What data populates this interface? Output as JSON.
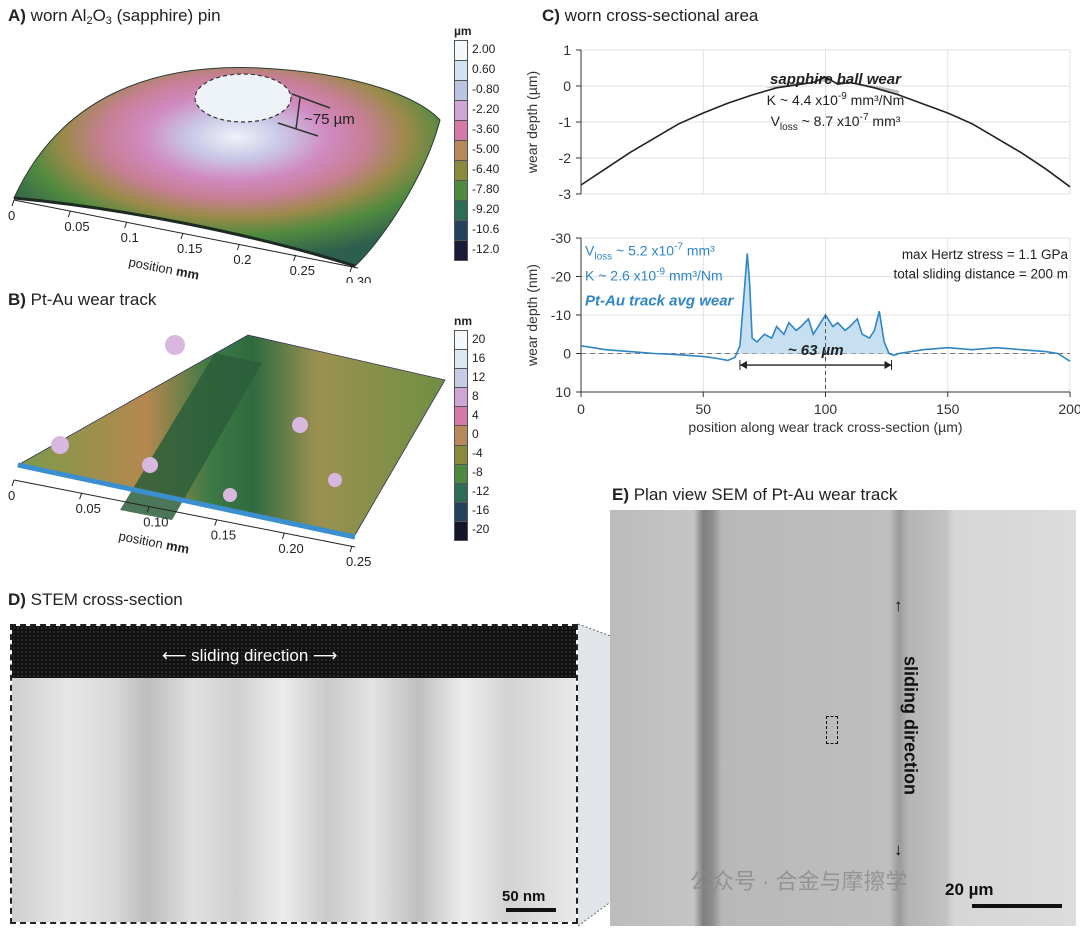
{
  "panels": {
    "a": {
      "letter": "A)",
      "title_pre": " worn Al",
      "sub1": "2",
      "mid": "O",
      "sub2": "3",
      "title_post": " (sapphire) pin",
      "annotation": "~75 µm",
      "axis_label": "position",
      "axis_unit": "mm",
      "ticks": [
        "0",
        "0.05",
        "0.1",
        "0.15",
        "0.2",
        "0.25",
        "0.30"
      ]
    },
    "b": {
      "letter": "B)",
      "title": " Pt-Au wear track",
      "axis_label": "position",
      "axis_unit": "mm",
      "ticks": [
        "0",
        "0.05",
        "0.10",
        "0.15",
        "0.20",
        "0.25"
      ]
    },
    "c": {
      "letter": "C)",
      "title": " worn cross-sectional area"
    },
    "d": {
      "letter": "D)",
      "title": " STEM cross-section",
      "sliding_label": "sliding direction",
      "scale_bar": "50 nm"
    },
    "e": {
      "letter": "E)",
      "title": " Plan view SEM of Pt-Au wear track",
      "sliding_label": "sliding direction",
      "scale_bar": "20 µm"
    }
  },
  "colorbar_a": {
    "unit": "µm",
    "ticks": [
      "2.00",
      "0.60",
      "-0.80",
      "-2.20",
      "-3.60",
      "-5.00",
      "-6.40",
      "-7.80",
      "-9.20",
      "-10.6",
      "-12.0"
    ],
    "colors": [
      "#f4f8fb",
      "#cfe4ee",
      "#bcc4e4",
      "#cfa6d6",
      "#d57aa6",
      "#b8875a",
      "#8a8a3c",
      "#4e8a3e",
      "#2e6d55",
      "#24415e",
      "#1a1a3a"
    ]
  },
  "colorbar_b": {
    "unit": "nm",
    "ticks": [
      "20",
      "16",
      "12",
      "8",
      "4",
      "0",
      "-4",
      "-8",
      "-12",
      "-16",
      "-20"
    ],
    "colors": [
      "#f4f8fb",
      "#dde9f1",
      "#c7cce6",
      "#cfa6d6",
      "#d57aa6",
      "#b8875a",
      "#8a8a3c",
      "#4e8a3e",
      "#2e6d55",
      "#24415e",
      "#14142a"
    ]
  },
  "watermark": "公众号 · 合金与摩擦学",
  "chart_data": [
    {
      "type": "line",
      "title": "",
      "ylabel": "wear depth (µm)",
      "xlim": [
        0,
        200
      ],
      "ylim": [
        1,
        -3
      ],
      "yticks": [
        "-3",
        "-2",
        "-1",
        "0",
        "1"
      ],
      "grid": true,
      "annotation_title": "sapphire ball wear",
      "annotation_k": "K ~ 4.4 x10",
      "annotation_k_exp": "-9",
      "annotation_k_unit": " mm³/Nm",
      "annotation_v": "V",
      "annotation_v_sub": "loss",
      "annotation_v_val": " ~ 8.7 x10",
      "annotation_v_exp": "-7",
      "annotation_v_unit": " mm³",
      "series": [
        {
          "x": [
            0,
            10,
            20,
            30,
            40,
            50,
            60,
            70,
            80,
            90,
            95,
            100,
            105,
            110,
            120,
            130,
            140,
            150,
            160,
            170,
            180,
            190,
            200
          ],
          "y": [
            -2.75,
            -2.3,
            -1.85,
            -1.45,
            -1.05,
            -0.75,
            -0.48,
            -0.25,
            -0.05,
            0.05,
            0.1,
            0.25,
            0.05,
            0.1,
            -0.05,
            -0.25,
            -0.5,
            -0.75,
            -1.05,
            -1.45,
            -1.85,
            -2.3,
            -2.8
          ]
        }
      ]
    },
    {
      "type": "line",
      "title": "",
      "xlabel": "position along wear track cross-section (µm)",
      "ylabel": "wear depth (nm)",
      "xlim": [
        0,
        200
      ],
      "ylim": [
        -30,
        10
      ],
      "xticks": [
        "0",
        "50",
        "100",
        "150",
        "200"
      ],
      "yticks": [
        "10",
        "0",
        "-10",
        "-20",
        "-30"
      ],
      "grid": true,
      "width_label": "~ 63 µm",
      "annotation_title": "Pt-Au track avg wear",
      "annotation_k": "K ~ 2.6 x10",
      "annotation_k_exp": "-9",
      "annotation_k_unit": " mm³/Nm",
      "annotation_v": "V",
      "annotation_v_sub": "loss",
      "annotation_v_val": " ~ 5.2 x10",
      "annotation_v_exp": "-7",
      "annotation_v_unit": " mm³",
      "note1": "total sliding distance = 200 m",
      "note2": "max Hertz stress = 1.1 GPa",
      "series": [
        {
          "x": [
            0,
            5,
            10,
            20,
            30,
            40,
            50,
            55,
            60,
            63,
            65,
            67,
            68,
            69,
            70,
            72,
            75,
            78,
            80,
            83,
            85,
            88,
            90,
            93,
            95,
            98,
            100,
            103,
            105,
            108,
            110,
            113,
            115,
            118,
            120,
            122,
            124,
            126,
            128,
            130,
            140,
            150,
            160,
            170,
            180,
            190,
            195,
            200
          ],
          "y": [
            -2,
            -1.5,
            -1,
            -0.5,
            0,
            0.3,
            0.8,
            1.2,
            1.8,
            1,
            -2,
            -18,
            -26,
            -18,
            -4,
            -3,
            -5,
            -4,
            -7,
            -5,
            -8,
            -6,
            -7,
            -9,
            -5,
            -8,
            -10,
            -7,
            -8,
            -6,
            -7,
            -9,
            -5,
            -4,
            -6,
            -11,
            -3,
            0,
            0.5,
            0,
            -1,
            -1.5,
            -1,
            -1.5,
            -1,
            -0.5,
            0,
            2
          ]
        }
      ]
    }
  ]
}
